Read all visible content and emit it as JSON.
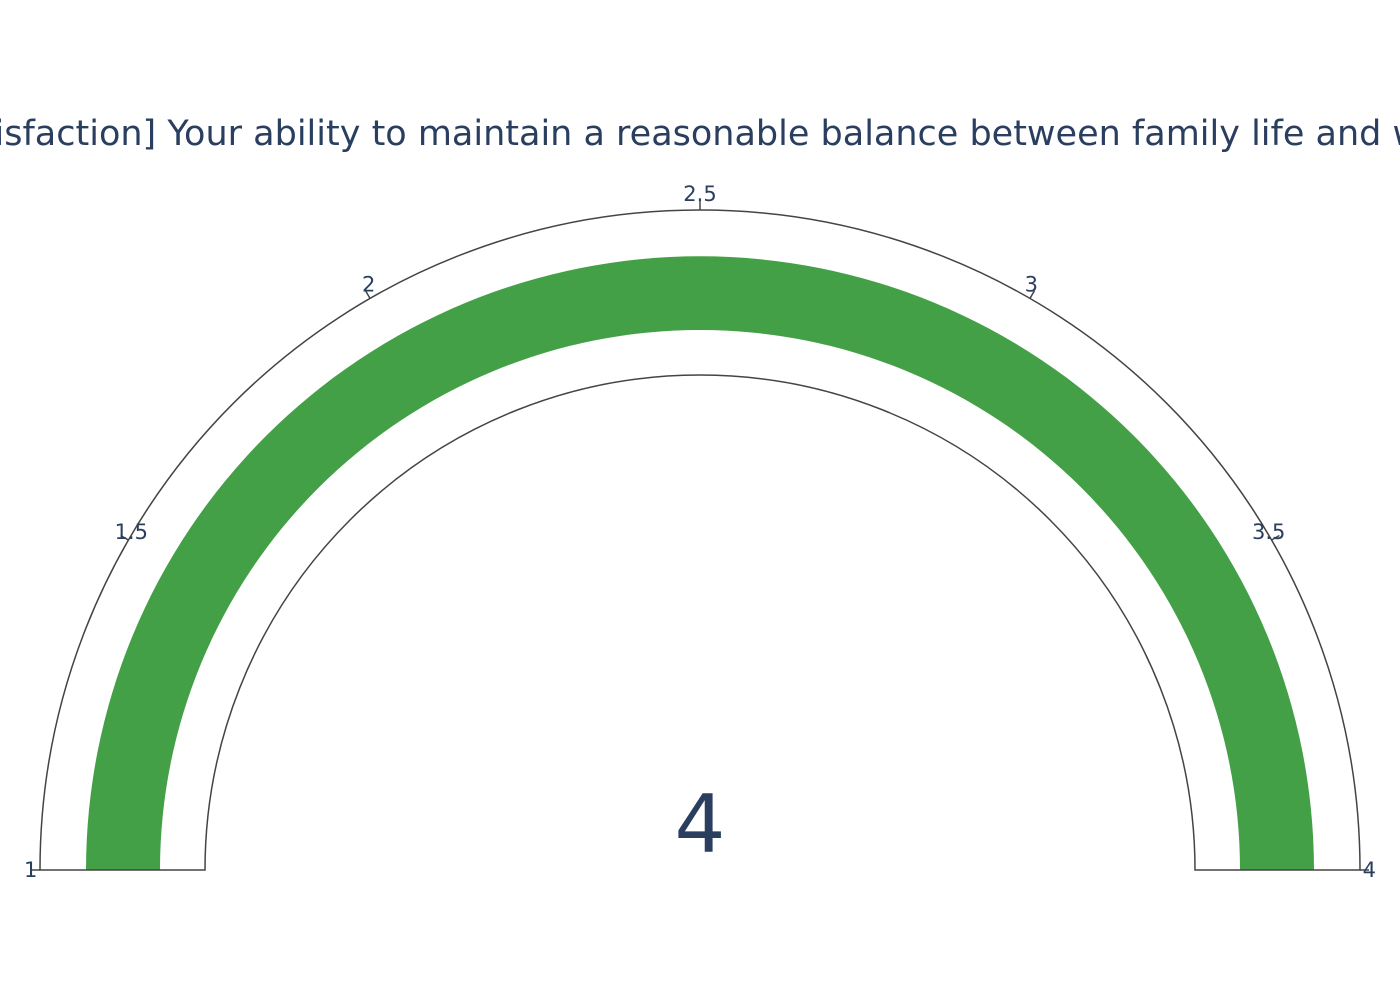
{
  "chart_data": {
    "type": "gauge",
    "title": "[Job Satisfaction] Your ability to maintain a reasonable balance between family life and work life",
    "value": 4,
    "value_label": "4",
    "range": [
      1,
      4
    ],
    "ticks": [
      1,
      1.5,
      2,
      2.5,
      3,
      3.5,
      4
    ],
    "tick_labels": [
      "1",
      "1.5",
      "2",
      "2.5",
      "3",
      "3.5",
      "4"
    ],
    "bar_color": "#44a047",
    "outline_color": "#444444",
    "text_color": "#2a3f5f"
  }
}
